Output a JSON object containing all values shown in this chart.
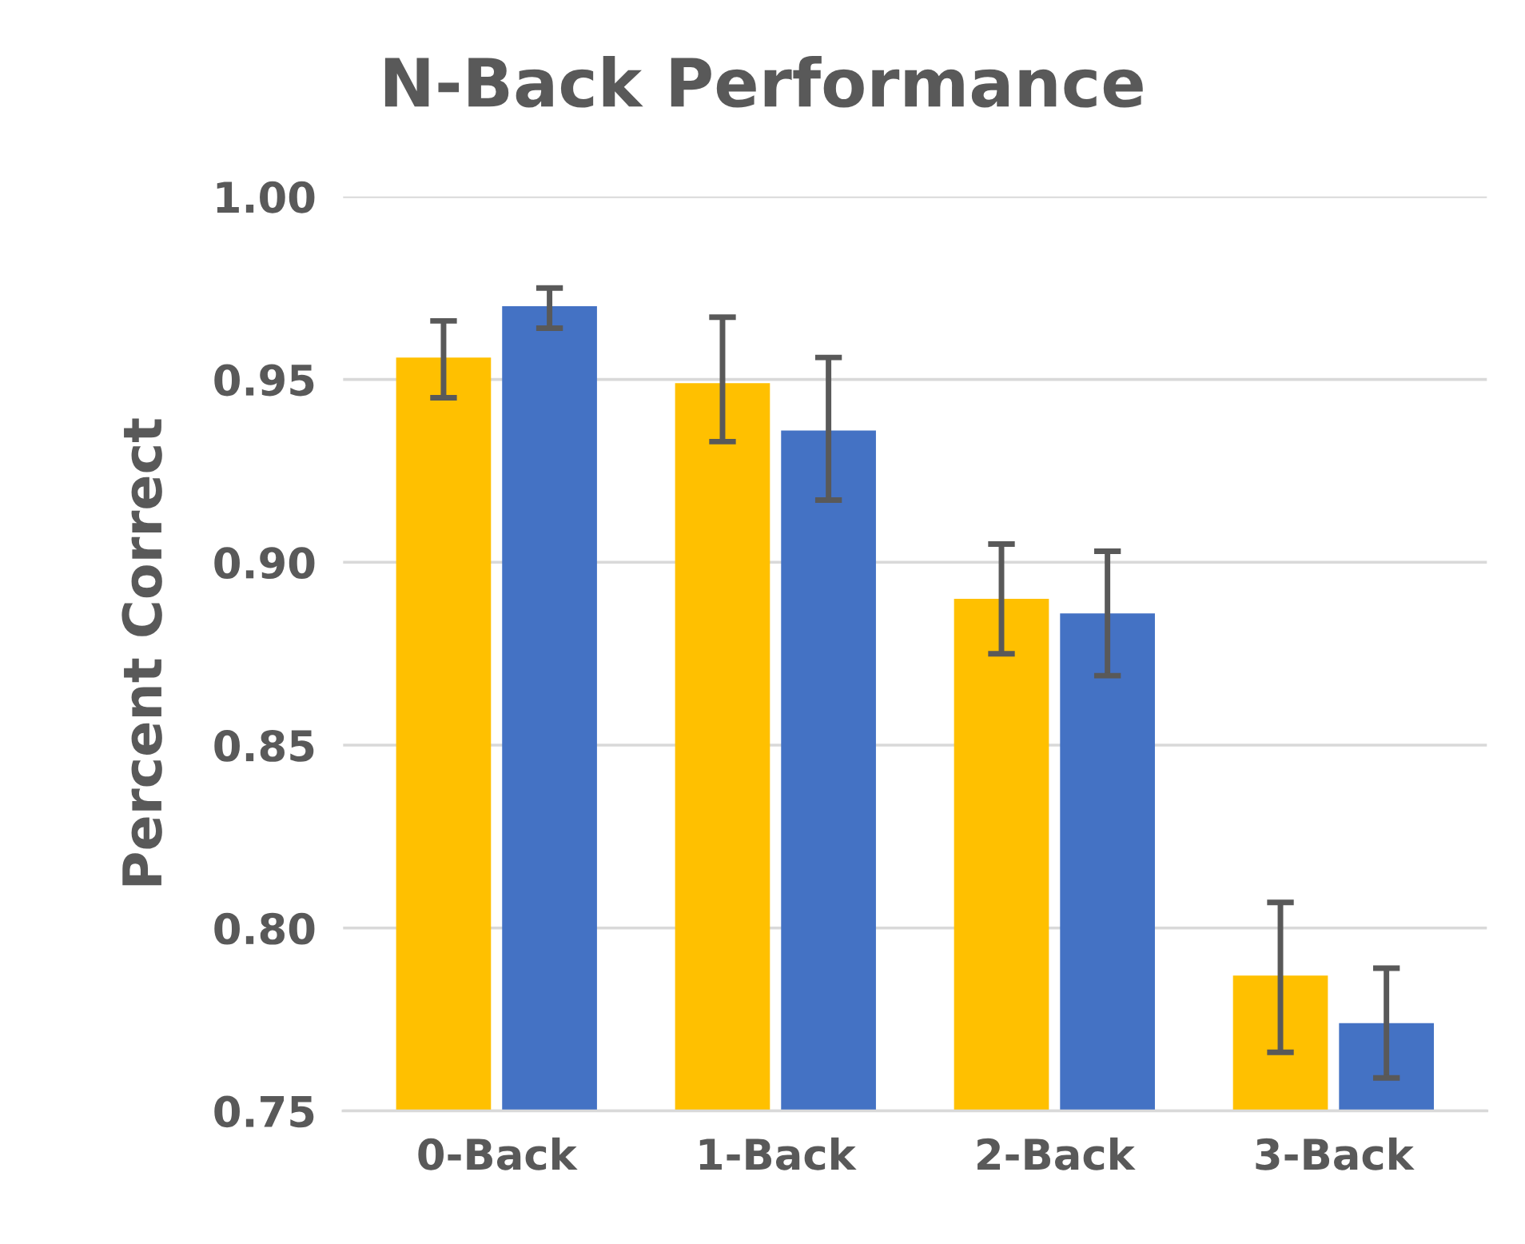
{
  "chart_data": {
    "type": "bar",
    "title": "N-Back Performance",
    "ylabel": "Percent Correct",
    "categories": [
      "0-Back",
      "1-Back",
      "2-Back",
      "3-Back"
    ],
    "series": [
      {
        "color": "#ffc000",
        "values": [
          0.956,
          0.949,
          0.89,
          0.787
        ],
        "errors": [
          [
            0.945,
            0.966
          ],
          [
            0.933,
            0.967
          ],
          [
            0.875,
            0.905
          ],
          [
            0.766,
            0.807
          ]
        ]
      },
      {
        "color": "#4472c4",
        "values": [
          0.97,
          0.936,
          0.886,
          0.774
        ],
        "errors": [
          [
            0.964,
            0.975
          ],
          [
            0.917,
            0.956
          ],
          [
            0.869,
            0.903
          ],
          [
            0.759,
            0.789
          ]
        ]
      }
    ],
    "ylim": [
      0.75,
      1.0
    ],
    "yticks": [
      {
        "value": 0.75,
        "label": "0.75"
      },
      {
        "value": 0.8,
        "label": "0.80"
      },
      {
        "value": 0.85,
        "label": "0.85"
      },
      {
        "value": 0.9,
        "label": "0.90"
      },
      {
        "value": 0.95,
        "label": "0.95"
      },
      {
        "value": 1.0,
        "label": "1.00"
      }
    ],
    "grid": "y"
  }
}
